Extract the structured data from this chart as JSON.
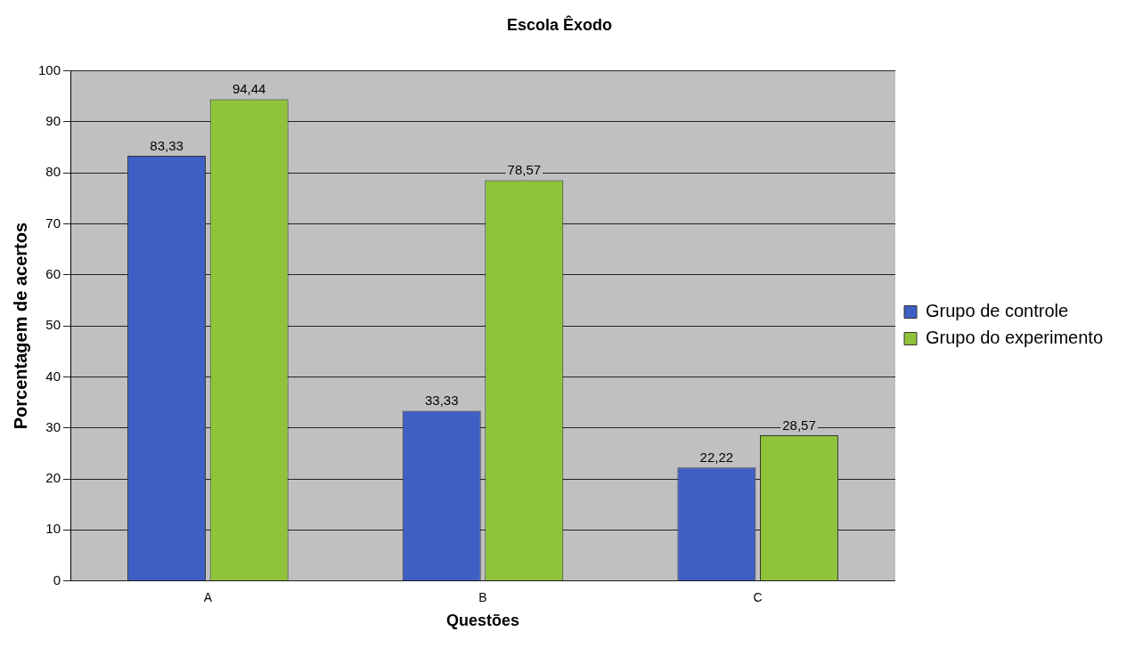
{
  "chart_data": {
    "type": "bar",
    "title": "Escola Êxodo",
    "xlabel": "Questões",
    "ylabel": "Porcentagem de acertos",
    "categories": [
      "A",
      "B",
      "C"
    ],
    "series": [
      {
        "name": "Grupo de controle",
        "color": "#3f5fc4",
        "values": [
          83.33,
          33.33,
          22.22
        ],
        "value_labels": [
          "83,33",
          "33,33",
          "22,22"
        ]
      },
      {
        "name": "Grupo do experimento",
        "color": "#8fc43a",
        "values": [
          94.44,
          78.57,
          28.57
        ],
        "value_labels": [
          "94,44",
          "78,57",
          "28,57"
        ]
      }
    ],
    "ylim": [
      0,
      100
    ],
    "yticks": [
      0,
      10,
      20,
      30,
      40,
      50,
      60,
      70,
      80,
      90,
      100
    ],
    "grid": "y",
    "legend": "right"
  }
}
